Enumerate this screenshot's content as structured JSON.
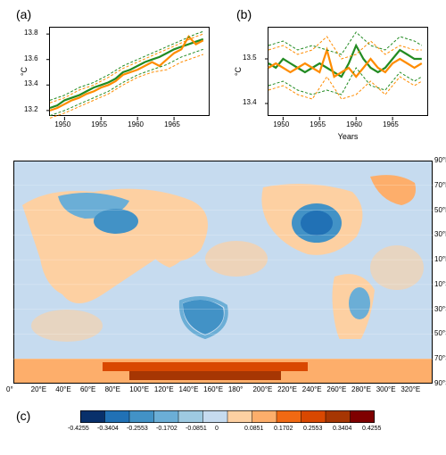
{
  "panel_a": {
    "label": "(a)",
    "type": "line",
    "xlim": [
      1948,
      1970
    ],
    "ylim": [
      13.15,
      13.85
    ],
    "ylabel": "°C",
    "xticks": [
      1950,
      1955,
      1960,
      1965
    ],
    "yticks": [
      13.2,
      13.4,
      13.6,
      13.8
    ],
    "series": {
      "green_solid": {
        "color": "#228B22",
        "width": 2.2,
        "dash": "none",
        "x": [
          1948,
          1949,
          1950,
          1951,
          1952,
          1953,
          1954,
          1955,
          1956,
          1957,
          1958,
          1959,
          1960,
          1961,
          1962,
          1963,
          1964,
          1965,
          1966,
          1967,
          1968,
          1969
        ],
        "y": [
          13.22,
          13.24,
          13.28,
          13.3,
          13.32,
          13.35,
          13.38,
          13.4,
          13.42,
          13.45,
          13.5,
          13.52,
          13.55,
          13.58,
          13.6,
          13.62,
          13.65,
          13.68,
          13.7,
          13.72,
          13.74,
          13.76
        ]
      },
      "orange_solid": {
        "color": "#FF8C00",
        "width": 2.2,
        "dash": "none",
        "x": [
          1948,
          1949,
          1950,
          1951,
          1952,
          1953,
          1954,
          1955,
          1956,
          1957,
          1958,
          1959,
          1960,
          1961,
          1962,
          1963,
          1964,
          1965,
          1966,
          1967,
          1968,
          1969
        ],
        "y": [
          13.2,
          13.22,
          13.25,
          13.28,
          13.3,
          13.33,
          13.35,
          13.38,
          13.4,
          13.43,
          13.48,
          13.5,
          13.52,
          13.55,
          13.58,
          13.55,
          13.6,
          13.65,
          13.68,
          13.78,
          13.72,
          13.75
        ]
      },
      "green_dashed_upper": {
        "color": "#228B22",
        "width": 1,
        "dash": "3,2",
        "x": [
          1948,
          1950,
          1952,
          1954,
          1956,
          1958,
          1960,
          1962,
          1964,
          1966,
          1968,
          1969
        ],
        "y": [
          13.28,
          13.32,
          13.38,
          13.42,
          13.48,
          13.55,
          13.6,
          13.65,
          13.7,
          13.75,
          13.8,
          13.82
        ]
      },
      "green_dashed_lower": {
        "color": "#228B22",
        "width": 1,
        "dash": "3,2",
        "x": [
          1948,
          1950,
          1952,
          1954,
          1956,
          1958,
          1960,
          1962,
          1964,
          1966,
          1968,
          1969
        ],
        "y": [
          13.16,
          13.2,
          13.25,
          13.3,
          13.35,
          13.42,
          13.48,
          13.52,
          13.56,
          13.62,
          13.66,
          13.68
        ]
      },
      "orange_dashed_upper": {
        "color": "#FF8C00",
        "width": 1,
        "dash": "3,2",
        "x": [
          1948,
          1950,
          1952,
          1954,
          1956,
          1958,
          1960,
          1962,
          1964,
          1966,
          1968,
          1969
        ],
        "y": [
          13.26,
          13.3,
          13.36,
          13.4,
          13.46,
          13.53,
          13.58,
          13.63,
          13.68,
          13.73,
          13.78,
          13.8
        ]
      },
      "orange_dashed_lower": {
        "color": "#FF8C00",
        "width": 1,
        "dash": "3,2",
        "x": [
          1948,
          1950,
          1952,
          1954,
          1956,
          1958,
          1960,
          1962,
          1964,
          1966,
          1968,
          1969
        ],
        "y": [
          13.14,
          13.18,
          13.23,
          13.28,
          13.33,
          13.4,
          13.46,
          13.5,
          13.52,
          13.58,
          13.62,
          13.64
        ]
      }
    }
  },
  "panel_b": {
    "label": "(b)",
    "type": "line",
    "xlim": [
      1948,
      1970
    ],
    "ylim": [
      13.37,
      13.57
    ],
    "ylabel": "°C",
    "xlabel": "Years",
    "xticks": [
      1950,
      1955,
      1960,
      1965
    ],
    "yticks": [
      13.4,
      13.5
    ],
    "series": {
      "green_solid": {
        "color": "#228B22",
        "width": 2.2,
        "dash": "none",
        "x": [
          1948,
          1949,
          1950,
          1951,
          1952,
          1953,
          1954,
          1955,
          1956,
          1957,
          1958,
          1959,
          1960,
          1961,
          1962,
          1963,
          1964,
          1965,
          1966,
          1967,
          1968,
          1969
        ],
        "y": [
          13.49,
          13.48,
          13.5,
          13.49,
          13.48,
          13.47,
          13.48,
          13.49,
          13.48,
          13.47,
          13.46,
          13.49,
          13.53,
          13.5,
          13.48,
          13.47,
          13.48,
          13.5,
          13.52,
          13.51,
          13.5,
          13.5
        ]
      },
      "orange_solid": {
        "color": "#FF8C00",
        "width": 2.2,
        "dash": "none",
        "x": [
          1948,
          1949,
          1950,
          1951,
          1952,
          1953,
          1954,
          1955,
          1956,
          1957,
          1958,
          1959,
          1960,
          1961,
          1962,
          1963,
          1964,
          1965,
          1966,
          1967,
          1968,
          1969
        ],
        "y": [
          13.48,
          13.49,
          13.48,
          13.47,
          13.48,
          13.49,
          13.48,
          13.47,
          13.52,
          13.46,
          13.47,
          13.48,
          13.46,
          13.48,
          13.5,
          13.48,
          13.47,
          13.49,
          13.5,
          13.49,
          13.48,
          13.49
        ]
      },
      "green_dashed_upper": {
        "color": "#228B22",
        "width": 1,
        "dash": "3,2",
        "x": [
          1948,
          1950,
          1952,
          1954,
          1956,
          1958,
          1960,
          1962,
          1964,
          1966,
          1968,
          1969
        ],
        "y": [
          13.53,
          13.54,
          13.52,
          13.53,
          13.52,
          13.51,
          13.56,
          13.53,
          13.52,
          13.55,
          13.54,
          13.53
        ]
      },
      "green_dashed_lower": {
        "color": "#228B22",
        "width": 1,
        "dash": "3,2",
        "x": [
          1948,
          1950,
          1952,
          1954,
          1956,
          1958,
          1960,
          1962,
          1964,
          1966,
          1968,
          1969
        ],
        "y": [
          13.44,
          13.45,
          13.43,
          13.42,
          13.43,
          13.42,
          13.48,
          13.44,
          13.43,
          13.47,
          13.45,
          13.46
        ]
      },
      "orange_dashed_upper": {
        "color": "#FF8C00",
        "width": 1,
        "dash": "3,2",
        "x": [
          1948,
          1950,
          1952,
          1954,
          1956,
          1958,
          1960,
          1962,
          1964,
          1966,
          1968,
          1969
        ],
        "y": [
          13.52,
          13.53,
          13.51,
          13.52,
          13.55,
          13.5,
          13.51,
          13.54,
          13.51,
          13.53,
          13.52,
          13.52
        ]
      },
      "orange_dashed_lower": {
        "color": "#FF8C00",
        "width": 1,
        "dash": "3,2",
        "x": [
          1948,
          1950,
          1952,
          1954,
          1956,
          1958,
          1960,
          1962,
          1964,
          1966,
          1968,
          1969
        ],
        "y": [
          13.43,
          13.44,
          13.42,
          13.41,
          13.46,
          13.41,
          13.42,
          13.45,
          13.42,
          13.46,
          13.44,
          13.45
        ]
      }
    }
  },
  "panel_c": {
    "label": "(c)",
    "type": "heatmap",
    "lon_ticks": [
      "0°",
      "20°E",
      "40°E",
      "60°E",
      "80°E",
      "100°E",
      "120°E",
      "140°E",
      "160°E",
      "180°",
      "200°E",
      "220°E",
      "240°E",
      "260°E",
      "280°E",
      "300°E",
      "320°E"
    ],
    "lat_ticks": [
      "90°S",
      "70°S",
      "50°S",
      "30°S",
      "10°S",
      "10°N",
      "30°N",
      "50°N",
      "70°N",
      "90°N"
    ],
    "colorbar": {
      "ticks": [
        "-0.4255",
        "-0.3404",
        "-0.2553",
        "-0.1702",
        "-0.0851",
        "0",
        "0.0851",
        "0.1702",
        "0.2553",
        "0.3404",
        "0.4255"
      ],
      "colors": [
        "#08306b",
        "#2171b5",
        "#4292c6",
        "#6baed6",
        "#9ecae1",
        "#c6dbef",
        "#fdd0a2",
        "#fdae6b",
        "#f16913",
        "#d94801",
        "#a63603",
        "#7f0000"
      ]
    }
  },
  "colors": {
    "green": "#228B22",
    "orange": "#FF8C00",
    "ocean_light": "#c6dbef",
    "land_warm": "#fdd0a2",
    "deep_blue": "#2171b5",
    "deep_red": "#a63603"
  }
}
